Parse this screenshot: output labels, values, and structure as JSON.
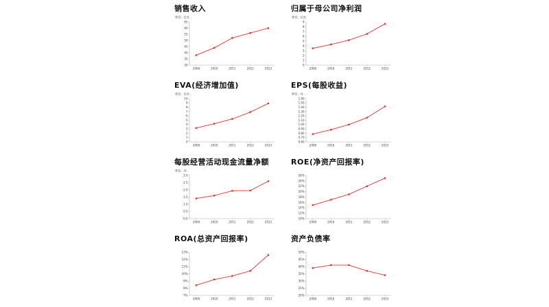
{
  "page": {
    "background": "#ffffff"
  },
  "style": {
    "line_color": "#e0312b",
    "marker_color": "#e0312b",
    "axis_color": "#aaaaaa",
    "tick_label_color": "#333333",
    "unit_label_color": "#555555",
    "title_color": "#111111"
  },
  "chart_data": [
    {
      "type": "line",
      "title": "销售收入",
      "unit_label": "单位：亿元",
      "categories": [
        "2009",
        "2010",
        "2011",
        "2012",
        "2013"
      ],
      "values": [
        38,
        44,
        52,
        56,
        60
      ],
      "ylim": [
        30,
        65
      ],
      "ystep": 5,
      "yfmt": "int",
      "grid": false,
      "legend": "none"
    },
    {
      "type": "line",
      "title": "归属于母公司净利润",
      "unit_label": "单位：亿元",
      "categories": [
        "2009",
        "2010",
        "2011",
        "2012",
        "2013"
      ],
      "values": [
        3.5,
        4.3,
        5.2,
        6.5,
        8.6
      ],
      "ylim": [
        0,
        9
      ],
      "ystep": 1,
      "yfmt": "int",
      "grid": false,
      "legend": "none"
    },
    {
      "type": "line",
      "title": "EVA(经济增加值)",
      "unit_label": "单位：亿元",
      "categories": [
        "2009",
        "2010",
        "2011",
        "2012",
        "2013"
      ],
      "values": [
        3.2,
        4.2,
        5.3,
        6.9,
        8.9
      ],
      "ylim": [
        0,
        10
      ],
      "ystep": 1,
      "yfmt": "int",
      "grid": false,
      "legend": "none"
    },
    {
      "type": "line",
      "title": "EPS(每股收益)",
      "unit_label": "单位：元",
      "categories": [
        "2009",
        "2010",
        "2011",
        "2012",
        "2013"
      ],
      "values": [
        0.78,
        0.88,
        1.0,
        1.16,
        1.42
      ],
      "ylim": [
        0.6,
        1.6
      ],
      "ystep": 0.1,
      "yfmt": "dec2",
      "grid": false,
      "legend": "none"
    },
    {
      "type": "line",
      "title": "每股经营活动现金流量净额",
      "unit_label": "单位：元",
      "categories": [
        "2009",
        "2010",
        "2011",
        "2012",
        "2013"
      ],
      "values": [
        1.4,
        1.6,
        1.93,
        1.95,
        2.6
      ],
      "ylim": [
        0,
        3
      ],
      "ystep": 0.5,
      "yfmt": "dec1",
      "grid": false,
      "legend": "none"
    },
    {
      "type": "line",
      "title": "ROE(净资产回报率)",
      "unit_label": "",
      "categories": [
        "2009",
        "2010",
        "2011",
        "2012",
        "2013"
      ],
      "values": [
        15,
        17,
        19,
        22,
        25
      ],
      "ylim": [
        10,
        26
      ],
      "ystep": 2,
      "yfmt": "pct",
      "grid": false,
      "legend": "none"
    },
    {
      "type": "line",
      "title": "ROA(总资产回报率)",
      "unit_label": "",
      "categories": [
        "2009",
        "2010",
        "2011",
        "2012",
        "2013"
      ],
      "values": [
        8.4,
        9.2,
        9.7,
        10.4,
        12.6
      ],
      "ylim": [
        7,
        13
      ],
      "ystep": 1,
      "yfmt": "pct",
      "grid": false,
      "legend": "none"
    },
    {
      "type": "line",
      "title": "资产负债率",
      "unit_label": "",
      "categories": [
        "2009",
        "2010",
        "2011",
        "2012",
        "2013"
      ],
      "values": [
        39,
        41,
        41,
        37,
        34
      ],
      "ylim": [
        20,
        50
      ],
      "ystep": 5,
      "yfmt": "pct",
      "grid": false,
      "legend": "none"
    }
  ]
}
